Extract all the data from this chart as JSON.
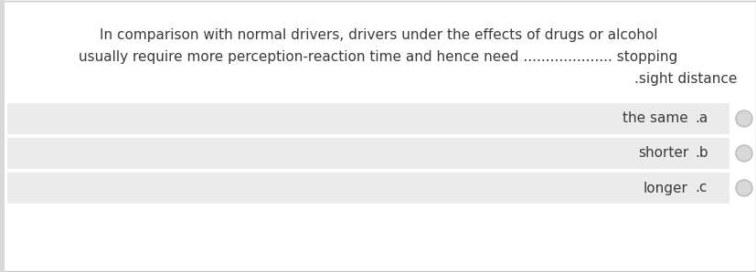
{
  "background_color": "#ffffff",
  "border_color": "#c8c8c8",
  "left_strip_color": "#d8d8d8",
  "question_line1": "In comparison with normal drivers, drivers under the effects of drugs or alcohol",
  "question_line2": "usually require more perception-reaction time and hence need .................... stopping",
  "question_line3": ".sight distance",
  "options": [
    {
      "label": "the same",
      "key": ".a"
    },
    {
      "label": "shorter",
      "key": ".b"
    },
    {
      "label": "longer",
      "key": ".c"
    }
  ],
  "option_bg_color": "#ebebeb",
  "text_color": "#3a3a3a",
  "circle_edge_color": "#b8b8b8",
  "circle_face_color": "#d8d8d8",
  "font_size_question": 11.0,
  "font_size_option": 11.0,
  "fig_width": 8.28,
  "fig_height": 2.98,
  "dpi": 100
}
